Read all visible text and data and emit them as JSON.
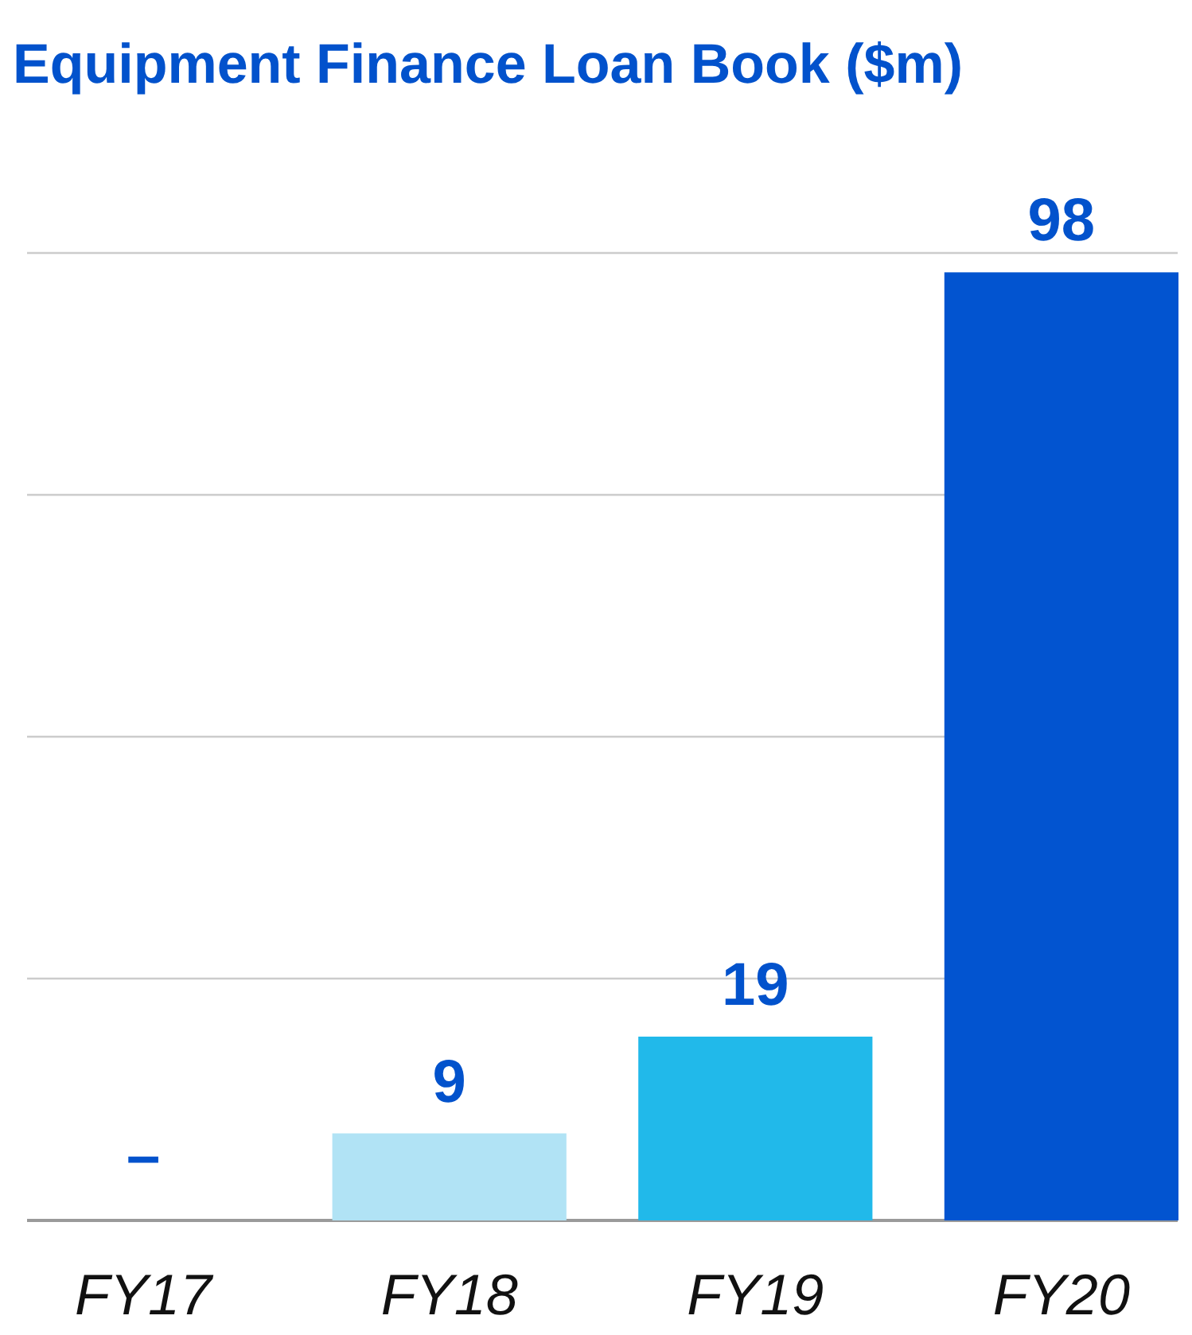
{
  "chart_data": {
    "type": "bar",
    "title": "Equipment Finance Loan Book ($m)",
    "categories": [
      "FY17",
      "FY18",
      "FY19",
      "FY20"
    ],
    "values": [
      null,
      9,
      19,
      98
    ],
    "colors": [
      null,
      "#b1e3f5",
      "#21b9ea",
      "#0254d0"
    ],
    "value_labels": [
      "–",
      "9",
      "19",
      "98"
    ],
    "ylim": [
      0,
      100
    ],
    "yticks": [
      {
        "value": 0,
        "label": null
      },
      {
        "value": 25,
        "label": null
      },
      {
        "value": 50,
        "label": null
      },
      {
        "value": 75,
        "label": null
      },
      {
        "value": 100,
        "label": null
      }
    ],
    "grid": "y",
    "tick_labels": "x"
  }
}
